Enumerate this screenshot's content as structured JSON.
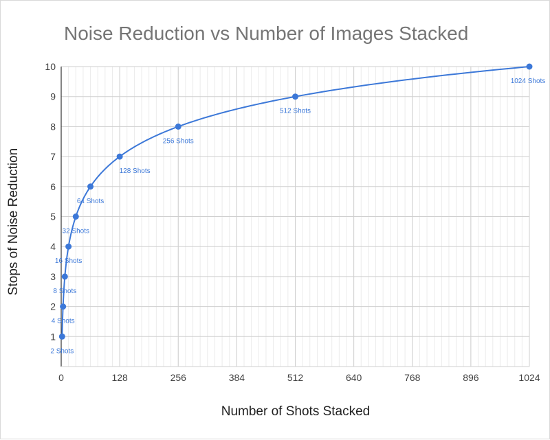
{
  "chart_data": {
    "type": "line",
    "title": "Noise Reduction vs Number of Images Stacked",
    "xlabel": "Number of Shots Stacked",
    "ylabel": "Stops of Noise Reduction",
    "xlim": [
      0,
      1024
    ],
    "ylim": [
      0,
      10
    ],
    "x_ticks": [
      0,
      128,
      256,
      384,
      512,
      640,
      768,
      896,
      1024
    ],
    "y_ticks": [
      1,
      2,
      3,
      4,
      5,
      6,
      7,
      8,
      9,
      10
    ],
    "grid": true,
    "minor_x_step": 16,
    "legend": "none",
    "series": [
      {
        "name": "Stops of Noise Reduction",
        "color": "#3c78d8",
        "x": [
          2,
          4,
          8,
          16,
          32,
          64,
          128,
          256,
          512,
          1024
        ],
        "y": [
          1,
          2,
          3,
          4,
          5,
          6,
          7,
          8,
          9,
          10
        ],
        "labels": [
          "2 Shots",
          "4 Shots",
          "8 Shots",
          "16 Shots",
          "32 Shots",
          "64 Shots",
          "128 Shots",
          "256 Shots",
          "512 Shots",
          "1024 Shots"
        ]
      }
    ]
  }
}
